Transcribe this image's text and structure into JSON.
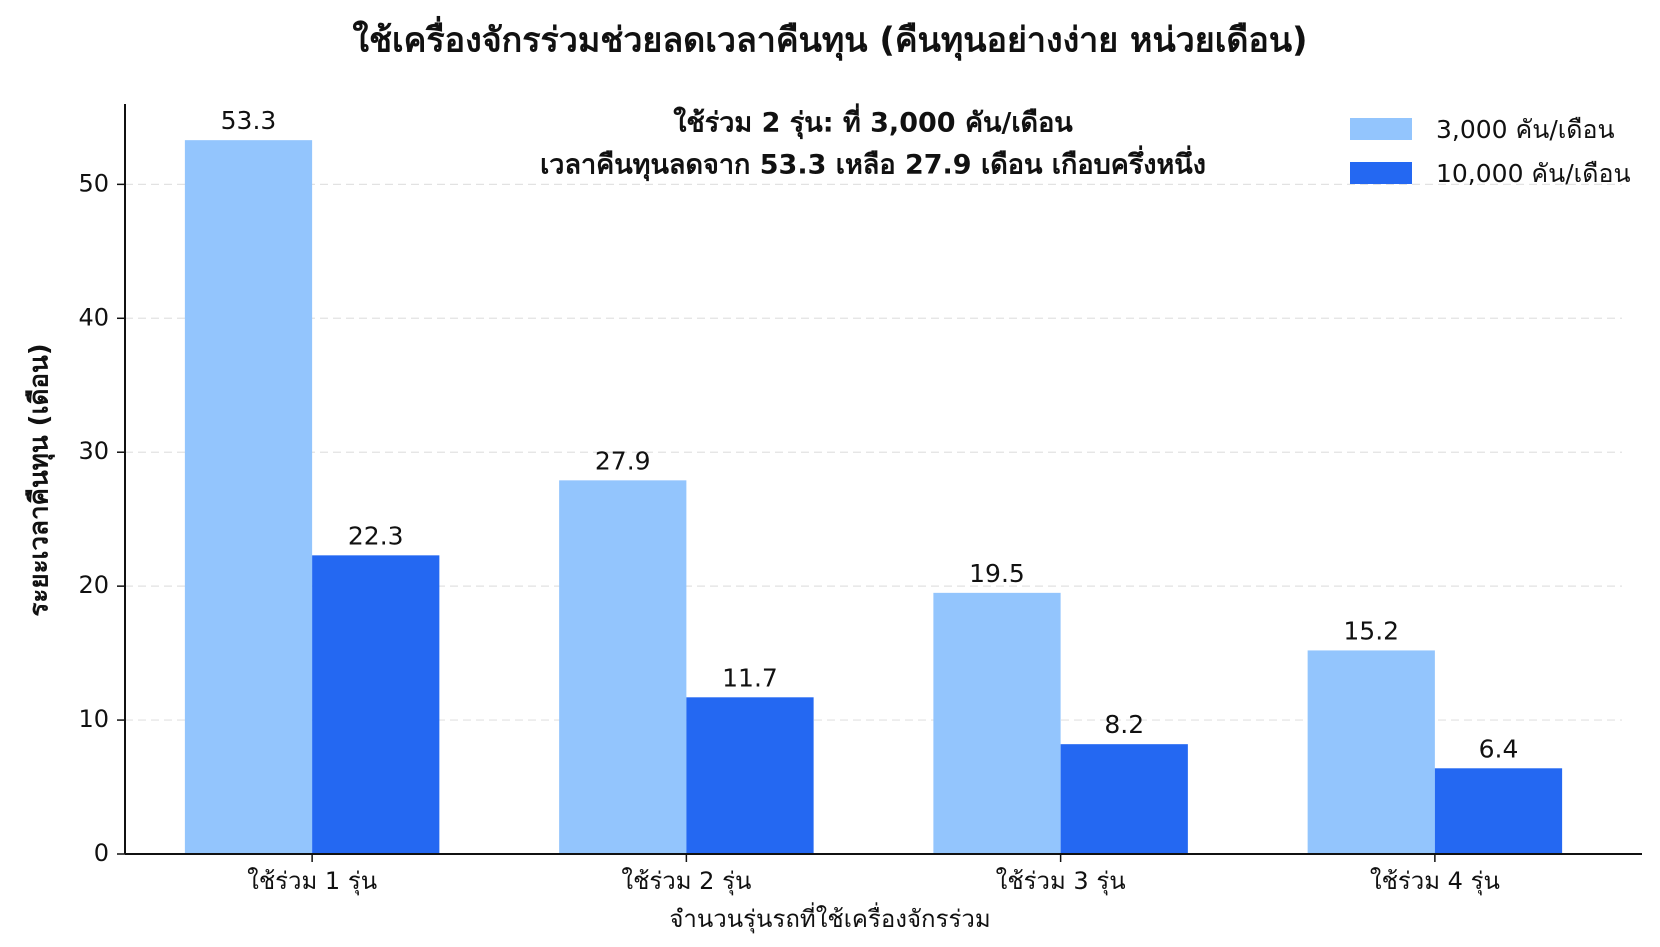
{
  "chart_data": {
    "type": "bar",
    "title": "ใช้เครื่องจักรร่วมช่วยลดเวลาคืนทุน (คืนทุนอย่างง่าย หน่วยเดือน)",
    "x_label": "จำนวนรุ่นรถที่ใช้เครื่องจักรร่วม",
    "y_label": "ระยะเวลาคืนทุน (เดือน)",
    "annotation": [
      "ใช้ร่วม 2 รุ่น: ที่ 3,000 คัน/เดือน",
      "เวลาคืนทุนลดจาก 53.3 เหลือ 27.9 เดือน เกือบครึ่งหนึ่ง"
    ],
    "annotation_color": "#22c55e",
    "categories": [
      "ใช้ร่วม 1 รุ่น",
      "ใช้ร่วม 2 รุ่น",
      "ใช้ร่วม 3 รุ่น",
      "ใช้ร่วม 4 รุ่น"
    ],
    "series": [
      {
        "name": "3,000 คัน/เดือน",
        "color": "#93c5fd",
        "values": [
          53.3,
          27.9,
          19.5,
          15.2
        ]
      },
      {
        "name": "10,000 คัน/เดือน",
        "color": "#2468f2",
        "values": [
          22.3,
          11.7,
          8.2,
          6.4
        ]
      }
    ],
    "ylim": [
      0,
      56
    ],
    "yticks": [
      0,
      10,
      20,
      30,
      40,
      50
    ],
    "grid": true,
    "legend": "upper right"
  }
}
